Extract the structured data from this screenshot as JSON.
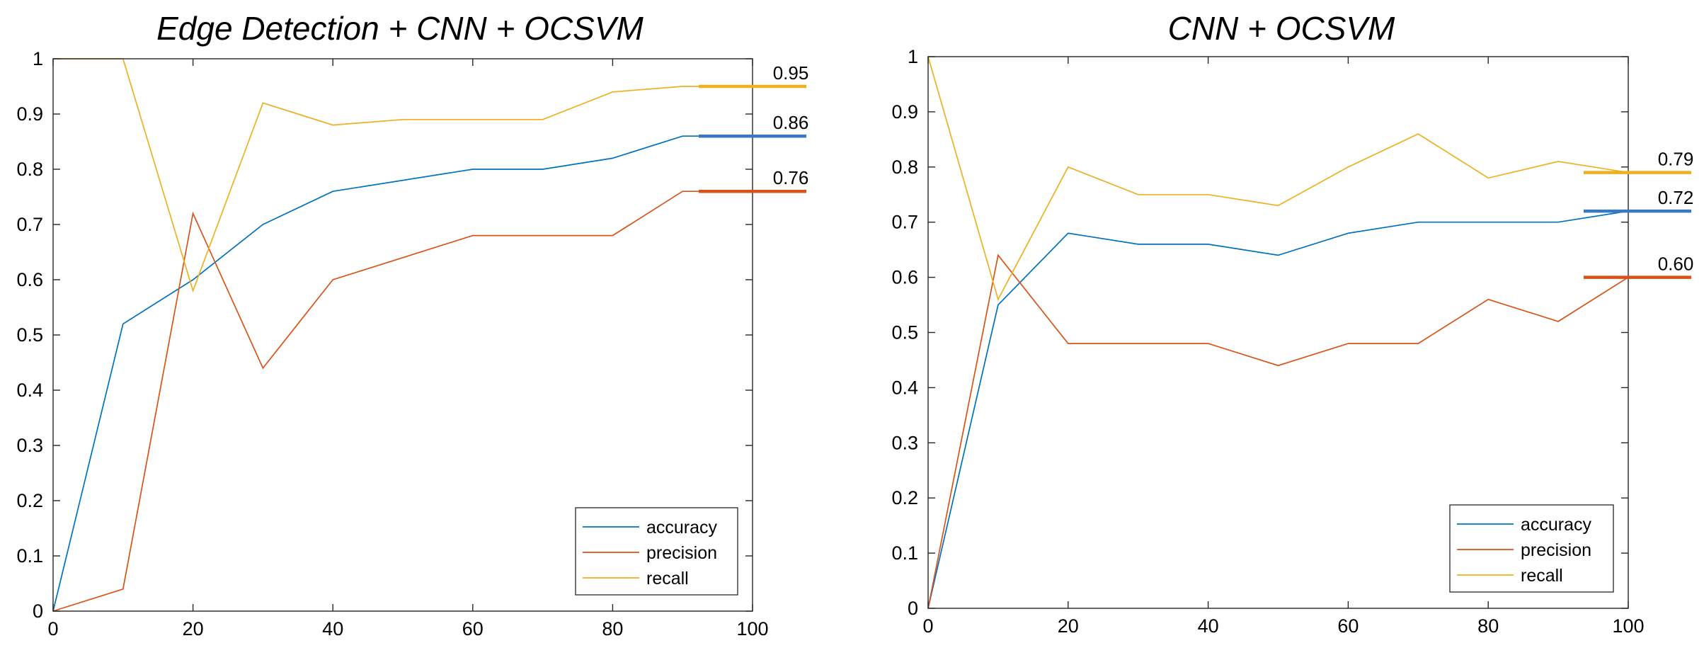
{
  "chart_data": [
    {
      "type": "line",
      "title": "Edge Detection + CNN + OCSVM",
      "xlabel": "",
      "ylabel": "",
      "x": [
        0,
        10,
        20,
        30,
        40,
        50,
        60,
        70,
        80,
        90,
        100
      ],
      "xlim": [
        0,
        100
      ],
      "ylim": [
        0,
        1
      ],
      "xticks": [
        0,
        20,
        40,
        60,
        80,
        100
      ],
      "yticks": [
        0,
        0.1,
        0.2,
        0.3,
        0.4,
        0.5,
        0.6,
        0.7,
        0.8,
        0.9,
        1
      ],
      "grid": false,
      "legend_position": "bottom-right",
      "series": [
        {
          "name": "accuracy",
          "color": "#0072BD",
          "values": [
            0,
            0.52,
            0.6,
            0.7,
            0.76,
            0.78,
            0.8,
            0.8,
            0.82,
            0.86,
            0.86
          ]
        },
        {
          "name": "precision",
          "color": "#D95319",
          "values": [
            0,
            0.04,
            0.72,
            0.44,
            0.6,
            0.64,
            0.68,
            0.68,
            0.68,
            0.76,
            0.76
          ]
        },
        {
          "name": "recall",
          "color": "#EDB120",
          "values": [
            1,
            1,
            0.58,
            0.92,
            0.88,
            0.89,
            0.89,
            0.89,
            0.94,
            0.95,
            0.95
          ]
        }
      ],
      "annotations": [
        {
          "label": "0.95",
          "value": 0.95,
          "color": "#EDB120"
        },
        {
          "label": "0.86",
          "value": 0.86,
          "color": "#3B78C2"
        },
        {
          "label": "0.76",
          "value": 0.76,
          "color": "#D95319"
        }
      ]
    },
    {
      "type": "line",
      "title": "CNN + OCSVM",
      "xlabel": "",
      "ylabel": "",
      "x": [
        0,
        10,
        20,
        30,
        40,
        50,
        60,
        70,
        80,
        90,
        100
      ],
      "xlim": [
        0,
        100
      ],
      "ylim": [
        0,
        1
      ],
      "xticks": [
        0,
        20,
        40,
        60,
        80,
        100
      ],
      "yticks": [
        0,
        0.1,
        0.2,
        0.3,
        0.4,
        0.5,
        0.6,
        0.7,
        0.8,
        0.9,
        1
      ],
      "grid": false,
      "legend_position": "bottom-right",
      "series": [
        {
          "name": "accuracy",
          "color": "#0072BD",
          "values": [
            0,
            0.55,
            0.68,
            0.66,
            0.66,
            0.64,
            0.68,
            0.7,
            0.7,
            0.7,
            0.72
          ]
        },
        {
          "name": "precision",
          "color": "#D95319",
          "values": [
            0,
            0.64,
            0.48,
            0.48,
            0.48,
            0.44,
            0.48,
            0.48,
            0.56,
            0.52,
            0.6
          ]
        },
        {
          "name": "recall",
          "color": "#EDB120",
          "values": [
            1,
            0.56,
            0.8,
            0.75,
            0.75,
            0.73,
            0.8,
            0.86,
            0.78,
            0.81,
            0.79
          ]
        }
      ],
      "annotations": [
        {
          "label": "0.79",
          "value": 0.79,
          "color": "#EDB120"
        },
        {
          "label": "0.72",
          "value": 0.72,
          "color": "#3B78C2"
        },
        {
          "label": "0.60",
          "value": 0.6,
          "color": "#D95319"
        }
      ]
    }
  ]
}
